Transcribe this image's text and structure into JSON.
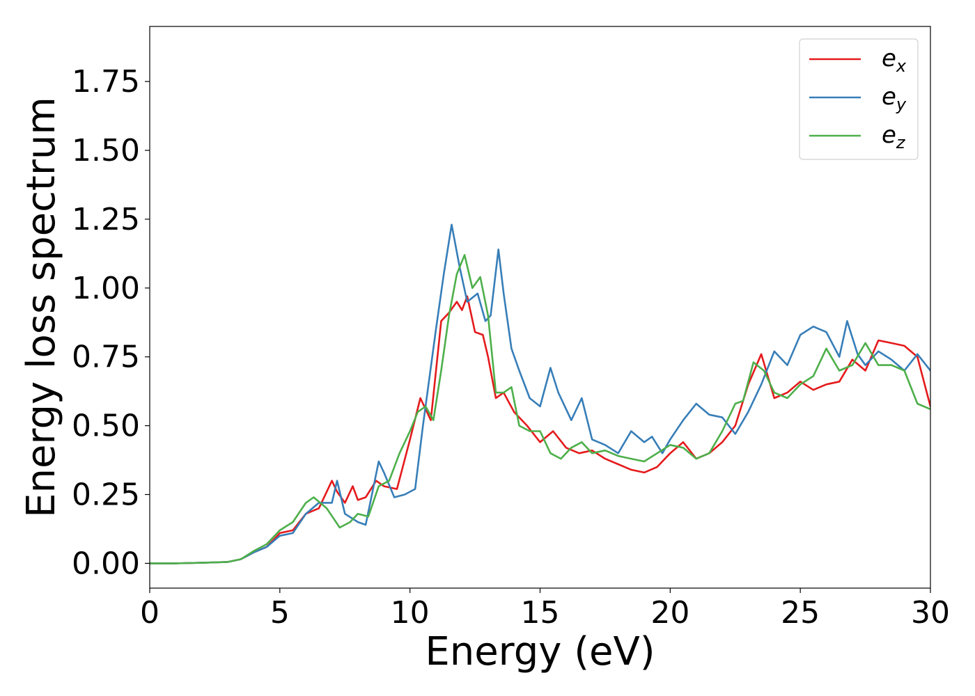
{
  "chart_data": {
    "type": "line",
    "xlabel": "Energy (eV)",
    "ylabel": "Energy loss spectrum",
    "xlim": [
      0,
      30
    ],
    "ylim": [
      -0.09,
      1.95
    ],
    "xticks": [
      0,
      5,
      10,
      15,
      20,
      25,
      30
    ],
    "xtick_labels": [
      "0",
      "5",
      "10",
      "15",
      "20",
      "25",
      "30"
    ],
    "yticks": [
      0.0,
      0.25,
      0.5,
      0.75,
      1.0,
      1.25,
      1.5,
      1.75
    ],
    "ytick_labels": [
      "0.00",
      "0.25",
      "0.50",
      "0.75",
      "1.00",
      "1.25",
      "1.50",
      "1.75"
    ],
    "grid": false,
    "legend_position": "top-right",
    "series": [
      {
        "name": "e_x",
        "label_base": "e",
        "label_sub": "x",
        "color": "#e41a1c",
        "x": [
          0,
          1,
          2,
          3,
          3.5,
          4,
          4.5,
          4.8,
          5,
          5.5,
          6,
          6.5,
          7,
          7.2,
          7.5,
          7.8,
          8,
          8.3,
          8.7,
          9,
          9.5,
          10,
          10.4,
          10.8,
          11.2,
          11.5,
          11.8,
          12,
          12.2,
          12.5,
          12.8,
          13,
          13.3,
          13.6,
          14,
          14.5,
          15,
          15.5,
          16,
          16.5,
          17,
          17.5,
          18,
          18.5,
          19,
          19.5,
          20,
          20.5,
          21,
          21.5,
          22,
          22.5,
          23,
          23.5,
          24,
          24.5,
          25,
          25.5,
          26,
          26.5,
          27,
          27.5,
          28,
          28.5,
          29,
          29.5,
          30
        ],
        "y": [
          0,
          0,
          0.002,
          0.005,
          0.015,
          0.04,
          0.06,
          0.09,
          0.11,
          0.12,
          0.18,
          0.2,
          0.3,
          0.26,
          0.22,
          0.28,
          0.23,
          0.24,
          0.3,
          0.28,
          0.27,
          0.45,
          0.6,
          0.52,
          0.88,
          0.91,
          0.95,
          0.92,
          0.97,
          0.84,
          0.83,
          0.75,
          0.6,
          0.62,
          0.55,
          0.5,
          0.44,
          0.48,
          0.42,
          0.4,
          0.41,
          0.38,
          0.36,
          0.34,
          0.33,
          0.35,
          0.4,
          0.44,
          0.38,
          0.4,
          0.44,
          0.5,
          0.65,
          0.76,
          0.6,
          0.62,
          0.66,
          0.63,
          0.65,
          0.66,
          0.74,
          0.7,
          0.81,
          0.8,
          0.79,
          0.75,
          0.57
        ]
      },
      {
        "name": "e_y",
        "label_base": "e",
        "label_sub": "y",
        "color": "#377eb8",
        "x": [
          0,
          1,
          2,
          3,
          3.5,
          4,
          4.5,
          5,
          5.5,
          6,
          6.5,
          7,
          7.2,
          7.5,
          8,
          8.3,
          8.8,
          9,
          9.4,
          9.8,
          10.2,
          10.5,
          11,
          11.3,
          11.6,
          11.9,
          12.2,
          12.6,
          12.9,
          13.1,
          13.4,
          13.6,
          13.9,
          14.2,
          14.6,
          15,
          15.4,
          15.7,
          16.2,
          16.6,
          17,
          17.5,
          18,
          18.5,
          19,
          19.3,
          19.7,
          20,
          20.5,
          21,
          21.5,
          22,
          22.5,
          23,
          23.5,
          24,
          24.5,
          25,
          25.5,
          26,
          26.5,
          26.8,
          27.2,
          27.5,
          28,
          28.5,
          29,
          29.5,
          30
        ],
        "y": [
          0,
          0,
          0.002,
          0.005,
          0.015,
          0.04,
          0.06,
          0.1,
          0.11,
          0.18,
          0.22,
          0.22,
          0.3,
          0.18,
          0.15,
          0.14,
          0.37,
          0.33,
          0.24,
          0.25,
          0.27,
          0.5,
          0.85,
          1.05,
          1.23,
          1.08,
          0.95,
          0.98,
          0.88,
          0.9,
          1.14,
          0.98,
          0.78,
          0.7,
          0.6,
          0.57,
          0.71,
          0.62,
          0.52,
          0.6,
          0.45,
          0.43,
          0.4,
          0.48,
          0.44,
          0.46,
          0.4,
          0.45,
          0.52,
          0.58,
          0.54,
          0.53,
          0.47,
          0.55,
          0.65,
          0.77,
          0.72,
          0.83,
          0.86,
          0.84,
          0.75,
          0.88,
          0.76,
          0.72,
          0.77,
          0.74,
          0.7,
          0.76,
          0.7
        ]
      },
      {
        "name": "e_z",
        "label_base": "e",
        "label_sub": "z",
        "color": "#4daf4a",
        "x": [
          0,
          1,
          2,
          3,
          3.5,
          4,
          4.5,
          5,
          5.5,
          6,
          6.3,
          6.8,
          7.3,
          7.7,
          8,
          8.4,
          8.8,
          9.2,
          9.6,
          10,
          10.3,
          10.6,
          10.9,
          11.2,
          11.5,
          11.8,
          12.1,
          12.4,
          12.7,
          13,
          13.3,
          13.6,
          13.9,
          14.2,
          14.6,
          15,
          15.4,
          15.8,
          16.2,
          16.6,
          17,
          17.5,
          18,
          18.5,
          19,
          19.5,
          20,
          20.5,
          21,
          21.5,
          22,
          22.5,
          22.8,
          23.2,
          23.6,
          24,
          24.5,
          25,
          25.5,
          26,
          26.5,
          27,
          27.5,
          28,
          28.5,
          29,
          29.5,
          30
        ],
        "y": [
          0,
          0,
          0.002,
          0.005,
          0.015,
          0.045,
          0.07,
          0.12,
          0.15,
          0.22,
          0.24,
          0.2,
          0.13,
          0.15,
          0.18,
          0.17,
          0.28,
          0.3,
          0.4,
          0.48,
          0.55,
          0.57,
          0.52,
          0.7,
          0.9,
          1.05,
          1.12,
          1.0,
          1.04,
          0.9,
          0.62,
          0.62,
          0.64,
          0.5,
          0.48,
          0.48,
          0.4,
          0.38,
          0.42,
          0.44,
          0.4,
          0.41,
          0.39,
          0.38,
          0.37,
          0.4,
          0.43,
          0.42,
          0.38,
          0.4,
          0.48,
          0.58,
          0.59,
          0.73,
          0.7,
          0.62,
          0.6,
          0.65,
          0.68,
          0.78,
          0.7,
          0.72,
          0.8,
          0.72,
          0.72,
          0.7,
          0.58,
          0.56
        ]
      }
    ]
  }
}
